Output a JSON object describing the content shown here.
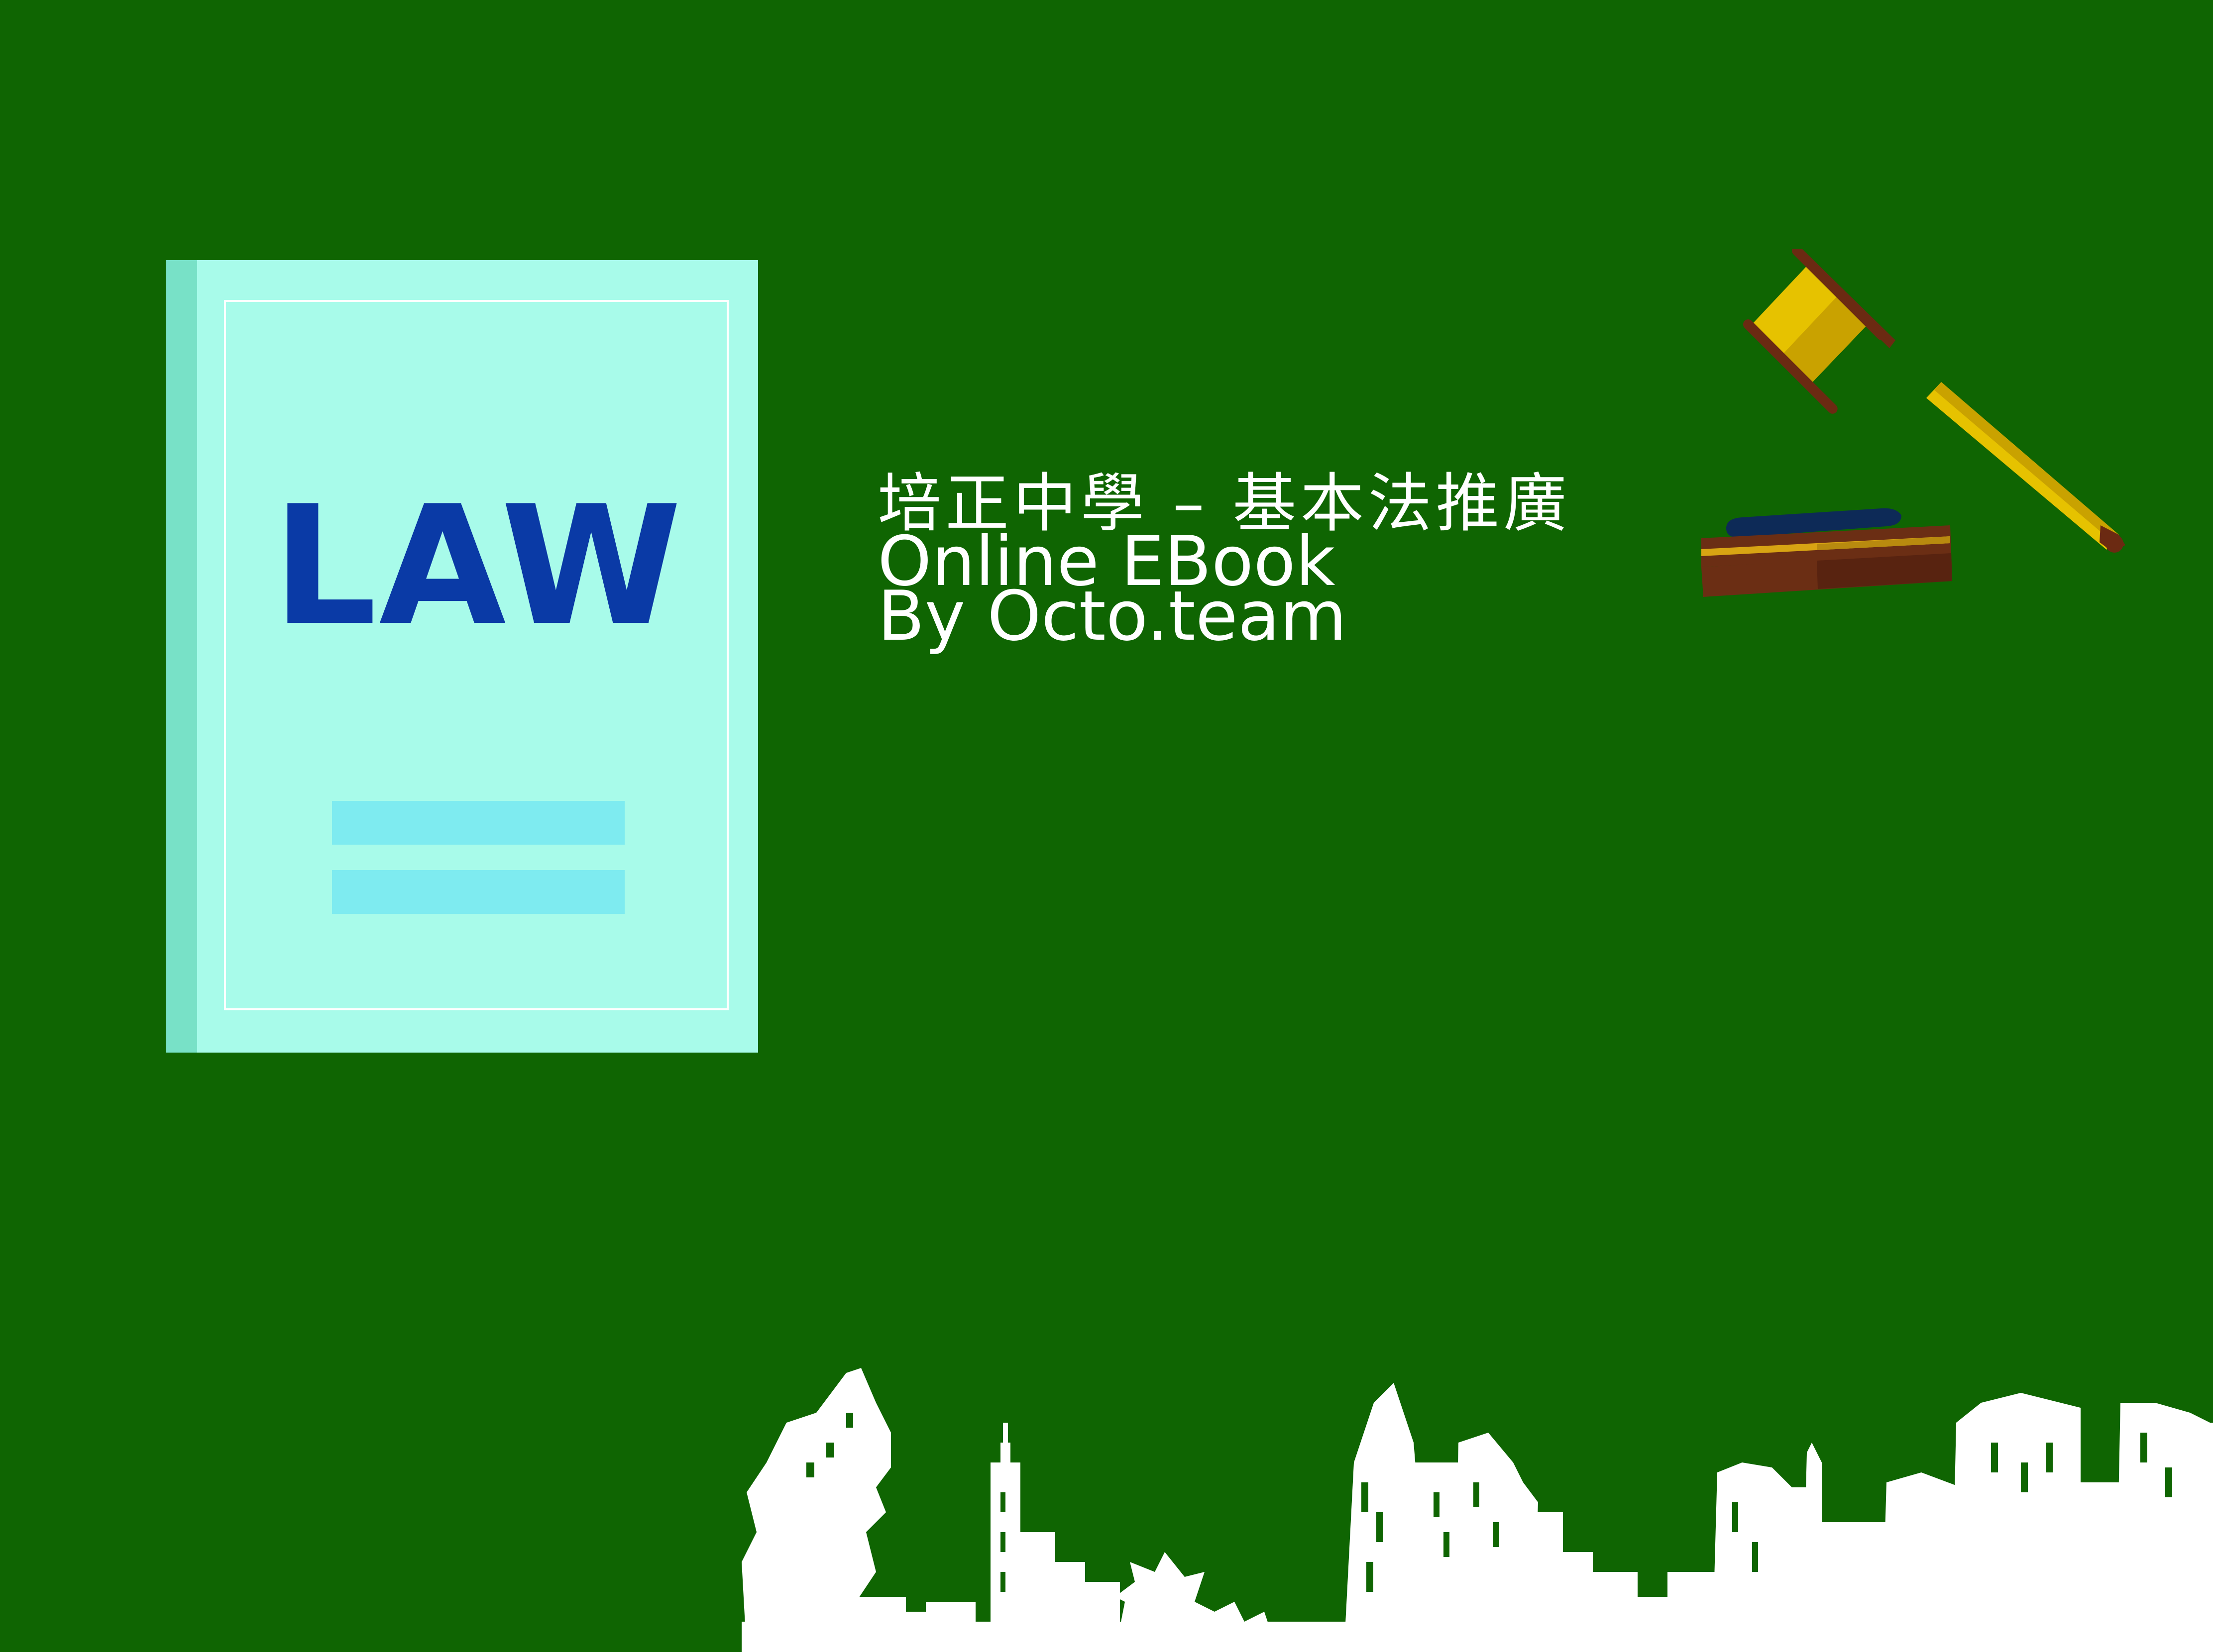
{
  "book": {
    "title": "LAW",
    "cover_color": "#a8fbea",
    "spine_color": "#78e1c7",
    "title_color": "#0a3aa6",
    "bar_color": "#7eebf0"
  },
  "heading": {
    "line1": "培正中學 – 基本法推廣",
    "line2": "Online EBook",
    "line3": "By Octo.team"
  },
  "colors": {
    "background": "#0f6502",
    "text": "#ffffff",
    "gavel_head": "#e6c200",
    "gavel_band": "#6b2a12",
    "block_base": "#6b2e14",
    "block_pad": "#0d2a57"
  },
  "icons": {
    "gavel": "gavel-icon",
    "skyline": "city-skyline"
  }
}
